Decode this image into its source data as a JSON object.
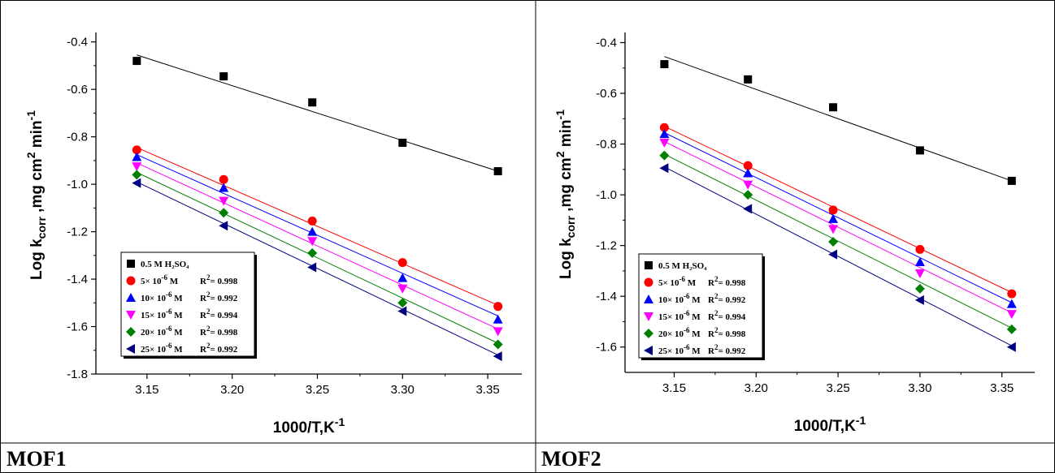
{
  "panels": [
    {
      "caption": "MOF1",
      "chart_data": {
        "type": "scatter",
        "xlabel": "1000/T,K",
        "xlabel_sup": "-1",
        "ylabel_parts": [
          "Log k",
          "corr",
          " ,mg cm",
          "2",
          " min",
          "-1"
        ],
        "xlim": [
          3.12,
          3.37
        ],
        "ylim": [
          -1.8,
          -0.36
        ],
        "xticks": [
          "3.15",
          "3.20",
          "3.25",
          "3.30",
          "3.35"
        ],
        "yticks": [
          "-0.4",
          "-0.6",
          "-0.8",
          "-1.0",
          "-1.2",
          "-1.4",
          "-1.6",
          "-1.8"
        ],
        "x": [
          3.144,
          3.195,
          3.247,
          3.3,
          3.356
        ],
        "series": [
          {
            "name": "0.5 M H₂SO₄",
            "r2": "",
            "marker": "square",
            "color": "#000000",
            "values": [
              -0.48,
              -0.545,
              -0.655,
              -0.825,
              -0.945
            ],
            "fit": [
              -0.455,
              -0.945
            ]
          },
          {
            "name": "5× 10",
            "exp": "-6",
            "unit": " M",
            "r2": "0.998",
            "marker": "circle",
            "color": "#ff0000",
            "values": [
              -0.855,
              -0.98,
              -1.155,
              -1.33,
              -1.515
            ],
            "fit": [
              -0.845,
              -1.51
            ]
          },
          {
            "name": "10× 10",
            "exp": "-6",
            "unit": " M",
            "r2": "0.992",
            "marker": "triangle-up",
            "color": "#0000ff",
            "values": [
              -0.885,
              -1.015,
              -1.2,
              -1.395,
              -1.57
            ],
            "fit": [
              -0.875,
              -1.555
            ]
          },
          {
            "name": "15× 10",
            "exp": "-6",
            "unit": " M",
            "r2": "0.994",
            "marker": "triangle-down",
            "color": "#ff00ff",
            "values": [
              -0.925,
              -1.07,
              -1.24,
              -1.44,
              -1.62
            ],
            "fit": [
              -0.91,
              -1.61
            ]
          },
          {
            "name": "20× 10",
            "exp": "-6",
            "unit": " M",
            "r2": "0.998",
            "marker": "diamond",
            "color": "#008000",
            "values": [
              -0.96,
              -1.12,
              -1.29,
              -1.5,
              -1.675
            ],
            "fit": [
              -0.95,
              -1.67
            ]
          },
          {
            "name": "25× 10",
            "exp": "-6",
            "unit": " M",
            "r2": "0.992",
            "marker": "triangle-left",
            "color": "#000080",
            "values": [
              -0.995,
              -1.175,
              -1.35,
              -1.535,
              -1.725
            ],
            "fit": [
              -0.99,
              -1.72
            ]
          }
        ]
      }
    },
    {
      "caption": "MOF2",
      "chart_data": {
        "type": "scatter",
        "xlabel": "1000/T,K",
        "xlabel_sup": "-1",
        "ylabel_parts": [
          "Log k",
          "corr",
          " ,mg cm",
          "2",
          " min",
          "-1"
        ],
        "xlim": [
          3.12,
          3.37
        ],
        "ylim": [
          -1.7,
          -0.36
        ],
        "xticks": [
          "3.15",
          "3.20",
          "3.25",
          "3.30",
          "3.35"
        ],
        "yticks": [
          "-0.4",
          "-0.6",
          "-0.8",
          "-1.0",
          "-1.2",
          "-1.4",
          "-1.6"
        ],
        "x": [
          3.144,
          3.195,
          3.247,
          3.3,
          3.356
        ],
        "series": [
          {
            "name": "0.5 M H₂SO₄",
            "r2": "",
            "marker": "square",
            "color": "#000000",
            "values": [
              -0.485,
              -0.545,
              -0.655,
              -0.825,
              -0.945
            ],
            "fit": [
              -0.455,
              -0.945
            ]
          },
          {
            "name": "5× 10",
            "exp": "-6",
            "unit": " M",
            "r2": "0.998",
            "marker": "circle",
            "color": "#ff0000",
            "values": [
              -0.735,
              -0.885,
              -1.06,
              -1.215,
              -1.39
            ],
            "fit": [
              -0.73,
              -1.385
            ]
          },
          {
            "name": "10× 10",
            "exp": "-6",
            "unit": " M",
            "r2": "0.992",
            "marker": "triangle-up",
            "color": "#0000ff",
            "values": [
              -0.76,
              -0.915,
              -1.095,
              -1.265,
              -1.43
            ],
            "fit": [
              -0.755,
              -1.425
            ]
          },
          {
            "name": "15× 10",
            "exp": "-6",
            "unit": " M",
            "r2": "0.994",
            "marker": "triangle-down",
            "color": "#ff00ff",
            "values": [
              -0.795,
              -0.96,
              -1.135,
              -1.31,
              -1.47
            ],
            "fit": [
              -0.79,
              -1.465
            ]
          },
          {
            "name": "20× 10",
            "exp": "-6",
            "unit": " M",
            "r2": "0.998",
            "marker": "diamond",
            "color": "#008000",
            "values": [
              -0.845,
              -1.0,
              -1.185,
              -1.37,
              -1.53
            ],
            "fit": [
              -0.84,
              -1.525
            ]
          },
          {
            "name": "25× 10",
            "exp": "-6",
            "unit": " M",
            "r2": "0.992",
            "marker": "triangle-left",
            "color": "#000080",
            "values": [
              -0.895,
              -1.055,
              -1.235,
              -1.415,
              -1.6
            ],
            "fit": [
              -0.89,
              -1.595
            ]
          }
        ]
      }
    }
  ]
}
